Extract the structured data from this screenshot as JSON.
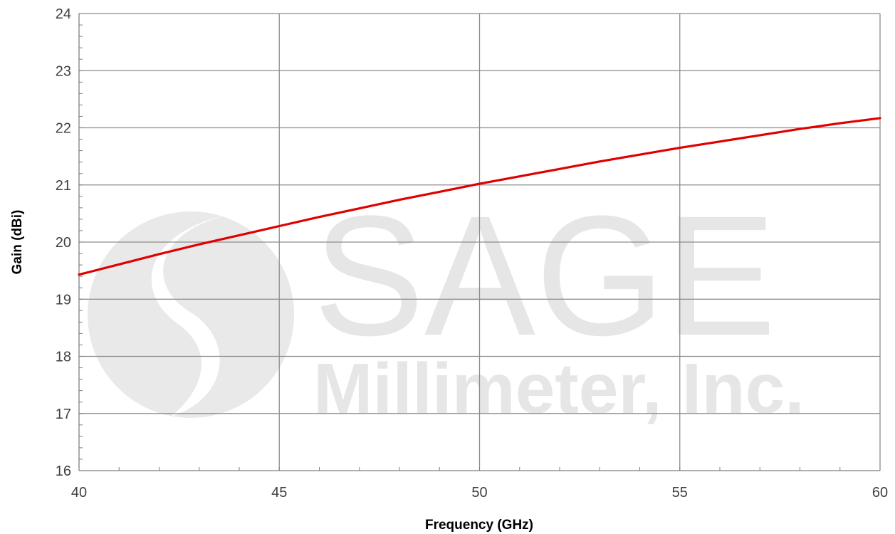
{
  "chart_data": {
    "type": "line",
    "title": "",
    "xlabel": "Frequency (GHz)",
    "ylabel": "Gain (dBi)",
    "xlim": [
      40,
      60
    ],
    "ylim": [
      16,
      24
    ],
    "xticks": [
      40,
      45,
      50,
      55,
      60
    ],
    "yticks": [
      16,
      17,
      18,
      19,
      20,
      21,
      22,
      23,
      24
    ],
    "x_minor_step": 1,
    "y_minor_step": 0.2,
    "grid": true,
    "legend": "none",
    "series": [
      {
        "color": "#e00000",
        "x": [
          40,
          41,
          42,
          43,
          44,
          45,
          46,
          47,
          48,
          49,
          50,
          51,
          52,
          53,
          54,
          55,
          56,
          57,
          58,
          59,
          60
        ],
        "y": [
          19.43,
          19.61,
          19.79,
          19.96,
          20.12,
          20.28,
          20.44,
          20.59,
          20.74,
          20.88,
          21.02,
          21.15,
          21.28,
          21.41,
          21.53,
          21.65,
          21.76,
          21.87,
          21.98,
          22.08,
          22.17
        ]
      }
    ]
  },
  "watermark": {
    "brand": "SAGE",
    "company": "Millimeter, Inc.",
    "color": "#e6e6e6"
  }
}
